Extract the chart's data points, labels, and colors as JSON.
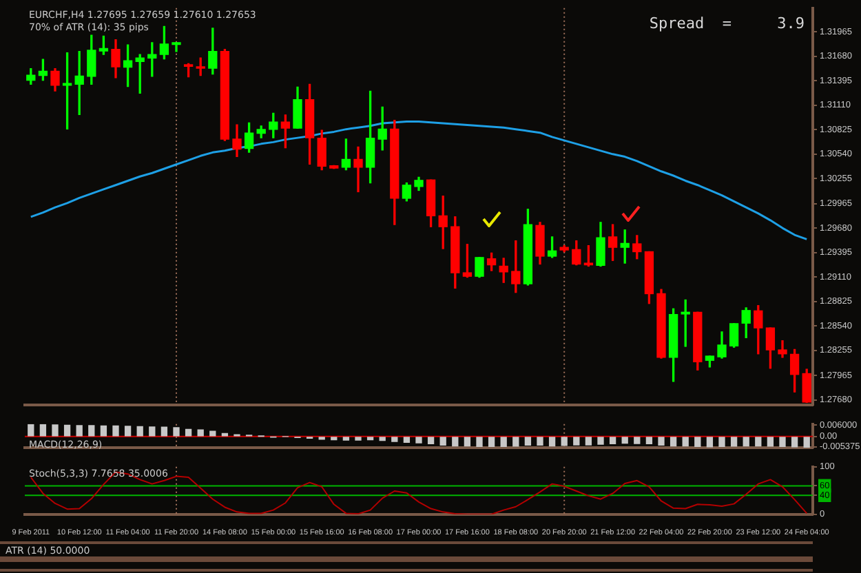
{
  "chart_data": [
    {
      "type": "candlestick",
      "title": "EURCHF,H4 1.27695 1.27659 1.27610 1.27653",
      "subtitle": "70% of ATR (14): 35 pips",
      "annotations": [
        "Spread  =     3.9"
      ],
      "categories": [
        "9 Feb 2011",
        null,
        null,
        null,
        "10 Feb 12:00",
        null,
        null,
        null,
        "11 Feb 04:00",
        null,
        null,
        null,
        "11 Feb 20:00",
        null,
        null,
        null,
        "14 Feb 08:00",
        null,
        null,
        null,
        "15 Feb 00:00",
        null,
        null,
        null,
        "15 Feb 16:00",
        null,
        null,
        null,
        "16 Feb 08:00",
        null,
        null,
        null,
        "17 Feb 00:00",
        null,
        null,
        null,
        "17 Feb 16:00",
        null,
        null,
        null,
        "18 Feb 08:00",
        null,
        null,
        null,
        "20 Feb 20:00",
        null,
        null,
        null,
        "21 Feb 12:00",
        null,
        null,
        null,
        "22 Feb 04:00",
        null,
        null,
        null,
        "22 Feb 20:00",
        null,
        null,
        null,
        "23 Feb 12:00",
        null,
        null,
        null,
        "24 Feb 04:00"
      ],
      "ohlc": [
        [
          1.31399,
          1.31536,
          1.31353,
          1.3146
        ],
        [
          1.31455,
          1.31644,
          1.31399,
          1.31506
        ],
        [
          1.31506,
          1.31536,
          1.31276,
          1.31342
        ],
        [
          1.31342,
          1.3172,
          1.30832,
          1.31363
        ],
        [
          1.31353,
          1.31735,
          1.31001,
          1.31449
        ],
        [
          1.31445,
          1.31924,
          1.31353,
          1.31751
        ],
        [
          1.3174,
          1.31914,
          1.317,
          1.31771
        ],
        [
          1.31761,
          1.31873,
          1.31429,
          1.31556
        ],
        [
          1.31552,
          1.31812,
          1.31327,
          1.31628
        ],
        [
          1.31618,
          1.317,
          1.3125,
          1.31659
        ],
        [
          1.31659,
          1.31838,
          1.31445,
          1.317
        ],
        [
          1.317,
          1.32026,
          1.31648,
          1.31823
        ],
        [
          1.31817,
          1.31838,
          1.31735,
          1.31838
        ],
        [
          1.31582,
          1.31593,
          1.3144,
          1.31562
        ],
        [
          1.31547,
          1.31659,
          1.31455,
          1.31541
        ],
        [
          1.31541,
          1.32006,
          1.31471,
          1.31735
        ],
        [
          1.31735,
          1.31761,
          1.30699,
          1.30715
        ],
        [
          1.30715,
          1.30883,
          1.30511,
          1.30598
        ],
        [
          1.30607,
          1.30904,
          1.30561,
          1.30786
        ],
        [
          1.30782,
          1.30868,
          1.3073,
          1.30828
        ],
        [
          1.30828,
          1.31016,
          1.3073,
          1.30914
        ],
        [
          1.30914,
          1.30996,
          1.30614,
          1.30843
        ],
        [
          1.30843,
          1.31322,
          1.30843,
          1.31174
        ],
        [
          1.31174,
          1.31353,
          1.30424,
          1.3073
        ],
        [
          1.30725,
          1.30817,
          1.30358,
          1.30399
        ],
        [
          1.30404,
          1.30408,
          1.30373,
          1.30378
        ],
        [
          1.30388,
          1.30715,
          1.30358,
          1.3048
        ],
        [
          1.3048,
          1.30623,
          1.30102,
          1.30388
        ],
        [
          1.30388,
          1.31272,
          1.30205,
          1.30725
        ],
        [
          1.30715,
          1.31088,
          1.30587,
          1.30832
        ],
        [
          1.30832,
          1.30935,
          1.2972,
          1.30026
        ],
        [
          1.30026,
          1.30205,
          1.29995,
          1.30179
        ],
        [
          1.30163,
          1.30271,
          1.30118,
          1.30235
        ],
        [
          1.3024,
          1.3024,
          1.29695,
          1.29822
        ],
        [
          1.29822,
          1.30052,
          1.2944,
          1.29695
        ],
        [
          1.29695,
          1.29811,
          1.2898,
          1.29159
        ],
        [
          1.29159,
          1.2949,
          1.29107,
          1.29118
        ],
        [
          1.29118,
          1.29337,
          1.29107,
          1.29337
        ],
        [
          1.29322,
          1.29389,
          1.29184,
          1.29251
        ],
        [
          1.29236,
          1.29328,
          1.29046,
          1.29169
        ],
        [
          1.29175,
          1.29531,
          1.2893,
          1.29031
        ],
        [
          1.29031,
          1.29899,
          1.29016,
          1.2972
        ],
        [
          1.2971,
          1.29746,
          1.2926,
          1.29352
        ],
        [
          1.29352,
          1.29577,
          1.29337,
          1.29414
        ],
        [
          1.29455,
          1.29475,
          1.29404,
          1.29424
        ],
        [
          1.29429,
          1.29531,
          1.29251,
          1.2926
        ],
        [
          1.29271,
          1.29475,
          1.29236,
          1.29251
        ],
        [
          1.29245,
          1.29746,
          1.29236,
          1.29567
        ],
        [
          1.29577,
          1.2972,
          1.29302,
          1.29455
        ],
        [
          1.29455,
          1.29658,
          1.29271,
          1.29501
        ],
        [
          1.29496,
          1.29593,
          1.29322,
          1.29404
        ],
        [
          1.29404,
          1.29404,
          1.28801,
          1.28915
        ],
        [
          1.28915,
          1.28965,
          1.28165,
          1.28174
        ],
        [
          1.28174,
          1.2874,
          1.27894,
          1.28674
        ],
        [
          1.28679,
          1.28843,
          1.28302,
          1.287
        ],
        [
          1.287,
          1.287,
          1.28027,
          1.28123
        ],
        [
          1.28139,
          1.28189,
          1.28062,
          1.28189
        ],
        [
          1.2818,
          1.28471,
          1.28165,
          1.28318
        ],
        [
          1.28307,
          1.28567,
          1.28292,
          1.28567
        ],
        [
          1.28572,
          1.28751,
          1.28403,
          1.2872
        ],
        [
          1.28716,
          1.28777,
          1.28215,
          1.28517
        ],
        [
          1.28517,
          1.28517,
          1.28047,
          1.28261
        ],
        [
          1.28261,
          1.28368,
          1.28174,
          1.28215
        ],
        [
          1.2821,
          1.28266,
          1.27771,
          1.27975
        ],
        [
          1.27985,
          1.28036,
          1.27649,
          1.27653
        ]
      ],
      "colors": [
        "#00ff00",
        "#00ff00",
        "#ff0000",
        "#00ff00",
        "#00ff00",
        "#00ff00",
        "#00ff00",
        "#ff0000",
        "#00ff00",
        "#00ff00",
        "#00ff00",
        "#00ff00",
        "#00ff00",
        "#ff0000",
        "#ff0000",
        "#00ff00",
        "#ff0000",
        "#ff0000",
        "#00ff00",
        "#00ff00",
        "#00ff00",
        "#ff0000",
        "#00ff00",
        "#ff0000",
        "#ff0000",
        "#ff0000",
        "#00ff00",
        "#ff0000",
        "#00ff00",
        "#00ff00",
        "#ff0000",
        "#00ff00",
        "#00ff00",
        "#ff0000",
        "#ff0000",
        "#ff0000",
        "#ff0000",
        "#00ff00",
        "#ff0000",
        "#ff0000",
        "#ff0000",
        "#00ff00",
        "#ff0000",
        "#00ff00",
        "#ff0000",
        "#ff0000",
        "#ff0000",
        "#00ff00",
        "#ff0000",
        "#00ff00",
        "#ff0000",
        "#ff0000",
        "#ff0000",
        "#00ff00",
        "#00ff00",
        "#ff0000",
        "#00ff00",
        "#00ff00",
        "#00ff00",
        "#00ff00",
        "#ff0000",
        "#ff0000",
        "#ff0000",
        "#ff0000",
        "#ff0000"
      ],
      "series": [
        {
          "type": "line",
          "color": "#1ea0e6",
          "values": [
            1.2981,
            1.2986,
            1.2992,
            1.2997,
            1.3003,
            1.3008,
            1.3013,
            1.3018,
            1.3023,
            1.3028,
            1.3032,
            1.3037,
            1.3042,
            1.3047,
            1.3052,
            1.3056,
            1.3058,
            1.3061,
            1.3063,
            1.3066,
            1.3068,
            1.3071,
            1.3073,
            1.3075,
            1.3078,
            1.308,
            1.3083,
            1.3085,
            1.3087,
            1.309,
            1.3091,
            1.3092,
            1.3092,
            1.3091,
            1.309,
            1.3089,
            1.3088,
            1.3087,
            1.3086,
            1.3085,
            1.3083,
            1.3081,
            1.3079,
            1.3074,
            1.307,
            1.3066,
            1.3062,
            1.3058,
            1.3054,
            1.3051,
            1.3046,
            1.304,
            1.3034,
            1.3029,
            1.3023,
            1.3018,
            1.3012,
            1.3006,
            1.2999,
            1.2992,
            1.2985,
            1.2977,
            1.2968,
            1.296,
            1.2955
          ]
        }
      ],
      "ylim": [
        1.2762,
        1.3224
      ],
      "yticks": [
        1.31965,
        {
          "value": 1.3168,
          "label": "1.31680"
        },
        1.31395,
        {
          "value": 1.3111,
          "label": "1.31110"
        },
        1.30825,
        {
          "value": 1.3054,
          "label": "1.30540"
        },
        1.30255,
        1.29965,
        {
          "value": 1.2968,
          "label": "1.29680"
        },
        1.29395,
        {
          "value": 1.2911,
          "label": "1.29110"
        },
        1.28825,
        {
          "value": 1.2854,
          "label": "1.28540"
        },
        1.28255,
        1.27965,
        {
          "value": 1.2768,
          "label": "1.27680"
        }
      ],
      "ref_lines": [
        {
          "axis": "x",
          "value": "11 Feb 20:00",
          "color": "#a0705a",
          "line_style": "dotted"
        },
        {
          "axis": "x",
          "value": "20 Feb 20:00",
          "color": "#a0705a",
          "line_style": "dotted"
        }
      ],
      "tick_labels": "y"
    },
    {
      "type": "bar",
      "title": "MACD(12,26,9)",
      "categories": [
        "9 Feb 2011",
        null,
        null,
        null,
        "10 Feb 12:00",
        null,
        null,
        null,
        "11 Feb 04:00",
        null,
        null,
        null,
        "11 Feb 20:00",
        null,
        null,
        null,
        "14 Feb 08:00",
        null,
        null,
        null,
        "15 Feb 00:00",
        null,
        null,
        null,
        "15 Feb 16:00",
        null,
        null,
        null,
        "16 Feb 08:00",
        null,
        null,
        null,
        "17 Feb 00:00",
        null,
        null,
        null,
        "17 Feb 16:00",
        null,
        null,
        null,
        "18 Feb 08:00",
        null,
        null,
        null,
        "20 Feb 20:00",
        null,
        null,
        null,
        "21 Feb 12:00",
        null,
        null,
        null,
        "22 Feb 04:00",
        null,
        null,
        null,
        "22 Feb 20:00",
        null,
        null,
        null,
        "23 Feb 12:00",
        null,
        null,
        null,
        "24 Feb 04:00"
      ],
      "color": "#c8c8c8",
      "values": [
        0.0063,
        0.0063,
        0.0061,
        0.0059,
        0.0057,
        0.0057,
        0.0056,
        0.0056,
        0.0054,
        0.0052,
        0.005,
        0.0049,
        0.0047,
        0.0038,
        0.0035,
        0.0028,
        0.0016,
        0.001,
        0.0007,
        0.0001,
        -0.0002,
        0,
        -0.0005,
        -0.0009,
        -0.0014,
        -0.0017,
        -0.0019,
        -0.0019,
        -0.0017,
        -0.0021,
        -0.0026,
        -0.003,
        -0.0033,
        -0.0038,
        -0.0045,
        -0.0049,
        -0.0049,
        -0.0052,
        -0.0052,
        -0.0052,
        -0.005,
        -0.0045,
        -0.0045,
        -0.0049,
        -0.0047,
        -0.0044,
        -0.0044,
        -0.004,
        -0.0038,
        -0.0035,
        -0.0037,
        -0.0038,
        -0.0045,
        -0.0049,
        -0.0049,
        -0.0052,
        -0.0054,
        -0.0052,
        -0.005,
        -0.0049,
        -0.0049,
        -0.005,
        -0.0052,
        -0.0054,
        -0.0056
      ],
      "ylim": [
        -0.0058,
        0.0065
      ],
      "yticks": [
        {
          "value": 0.006,
          "label": "0.006000"
        },
        {
          "value": 0,
          "label": "0.00"
        },
        {
          "value": -0.005375,
          "label": "-0.005375"
        }
      ],
      "ref_lines": [
        {
          "axis": "y",
          "value": 0,
          "color": "#cc0000"
        },
        {
          "axis": "x",
          "value": "11 Feb 20:00",
          "color": "#a0705a",
          "line_style": "dotted"
        },
        {
          "axis": "x",
          "value": "20 Feb 20:00",
          "color": "#a0705a",
          "line_style": "dotted"
        }
      ],
      "tick_labels": "y"
    },
    {
      "type": "line",
      "title": "Stoch(5,3,3) 7.7658 35.0006",
      "categories": [
        "9 Feb 2011",
        null,
        null,
        null,
        "10 Feb 12:00",
        null,
        null,
        null,
        "11 Feb 04:00",
        null,
        null,
        null,
        "11 Feb 20:00",
        null,
        null,
        null,
        "14 Feb 08:00",
        null,
        null,
        null,
        "15 Feb 00:00",
        null,
        null,
        null,
        "15 Feb 16:00",
        null,
        null,
        null,
        "16 Feb 08:00",
        null,
        null,
        null,
        "17 Feb 00:00",
        null,
        null,
        null,
        "17 Feb 16:00",
        null,
        null,
        null,
        "18 Feb 08:00",
        null,
        null,
        null,
        "20 Feb 20:00",
        null,
        null,
        null,
        "21 Feb 12:00",
        null,
        null,
        null,
        "22 Feb 04:00",
        null,
        null,
        null,
        "22 Feb 20:00",
        null,
        null,
        null,
        "23 Feb 12:00",
        null,
        null,
        null,
        "24 Feb 04:00"
      ],
      "color": "#b40000",
      "values": [
        78,
        44,
        23,
        11,
        12,
        33,
        63,
        89,
        85,
        73,
        64,
        71,
        80,
        78,
        55,
        32,
        15,
        5,
        2,
        2,
        9,
        24,
        56,
        67,
        58,
        21,
        2,
        1,
        9,
        34,
        49,
        45,
        26,
        12,
        5,
        1,
        0,
        0,
        0,
        9,
        16,
        31,
        47,
        64,
        59,
        49,
        39,
        32,
        44,
        65,
        71,
        58,
        28,
        13,
        12,
        21,
        20,
        17,
        22,
        42,
        64,
        73,
        58,
        31,
        2
      ],
      "ylim": [
        0,
        100
      ],
      "yticks": [
        100,
        60,
        40,
        0
      ],
      "ref_lines": [
        {
          "axis": "y",
          "value": 60,
          "color": "#00b400"
        },
        {
          "axis": "y",
          "value": 40,
          "color": "#00b400"
        },
        {
          "axis": "x",
          "value": "11 Feb 20:00",
          "color": "#a0705a",
          "line_style": "dotted"
        },
        {
          "axis": "x",
          "value": "20 Feb 20:00",
          "color": "#a0705a",
          "line_style": "dotted"
        }
      ]
    },
    {
      "type": "other",
      "title": "ATR (14) 50.0000"
    }
  ]
}
